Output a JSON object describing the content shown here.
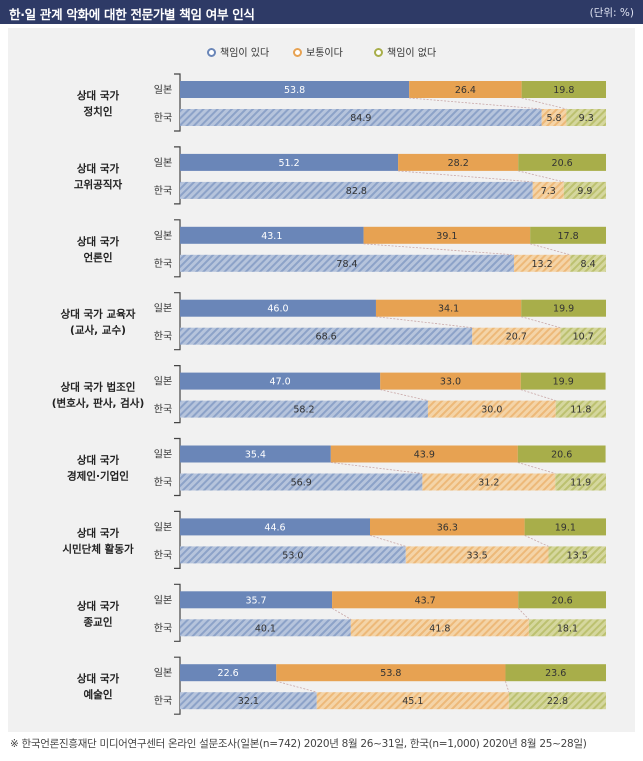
{
  "header": {
    "title": "한·일 관계 악화에 대한 전문가별 책임 여부 인식",
    "unit": "(단위: %)"
  },
  "footnote": "※ 한국언론진흥재단 미디어연구센터 온라인 설문조사(일본(n=742) 2020년 8월 26~31일, 한국(n=1,000) 2020년 8월 25~28일)",
  "colors": {
    "responsible": "#6a86b8",
    "neutral": "#e7a252",
    "not_responsible": "#a8ae4a",
    "responsible_light": "#b6c4dc",
    "neutral_light": "#f4d4a8",
    "not_responsible_light": "#d5d79e",
    "title_bar": "#2e3a66",
    "panel": "#f1f1f1"
  },
  "chart_data": {
    "type": "bar",
    "orientation": "horizontal",
    "stacked": true,
    "xlim": [
      0,
      100
    ],
    "legend": {
      "placement": "top-center",
      "entries": [
        "책임이 있다",
        "보통이다",
        "책임이 없다"
      ]
    },
    "countries": [
      "일본",
      "한국"
    ],
    "groups": [
      {
        "label": [
          "상대 국가",
          "정치인"
        ],
        "rows": [
          {
            "country": "일본",
            "values": [
              53.8,
              26.4,
              19.8
            ]
          },
          {
            "country": "한국",
            "values": [
              84.9,
              5.8,
              9.3
            ]
          }
        ]
      },
      {
        "label": [
          "상대 국가",
          "고위공직자"
        ],
        "rows": [
          {
            "country": "일본",
            "values": [
              51.2,
              28.2,
              20.6
            ]
          },
          {
            "country": "한국",
            "values": [
              82.8,
              7.3,
              9.9
            ]
          }
        ]
      },
      {
        "label": [
          "상대 국가",
          "언론인"
        ],
        "rows": [
          {
            "country": "일본",
            "values": [
              43.1,
              39.1,
              17.8
            ]
          },
          {
            "country": "한국",
            "values": [
              78.4,
              13.2,
              8.4
            ]
          }
        ]
      },
      {
        "label": [
          "상대 국가 교육자",
          "(교사, 교수)"
        ],
        "rows": [
          {
            "country": "일본",
            "values": [
              46.0,
              34.1,
              19.9
            ]
          },
          {
            "country": "한국",
            "values": [
              68.6,
              20.7,
              10.7
            ]
          }
        ]
      },
      {
        "label": [
          "상대 국가 법조인",
          "(변호사, 판사, 검사)"
        ],
        "rows": [
          {
            "country": "일본",
            "values": [
              47.0,
              33.0,
              19.9
            ]
          },
          {
            "country": "한국",
            "values": [
              58.2,
              30.0,
              11.8
            ]
          }
        ]
      },
      {
        "label": [
          "상대 국가",
          "경제인·기업인"
        ],
        "rows": [
          {
            "country": "일본",
            "values": [
              35.4,
              43.9,
              20.6
            ]
          },
          {
            "country": "한국",
            "values": [
              56.9,
              31.2,
              11.9
            ]
          }
        ]
      },
      {
        "label": [
          "상대 국가",
          "시민단체 활동가"
        ],
        "rows": [
          {
            "country": "일본",
            "values": [
              44.6,
              36.3,
              19.1
            ]
          },
          {
            "country": "한국",
            "values": [
              53.0,
              33.5,
              13.5
            ]
          }
        ]
      },
      {
        "label": [
          "상대 국가",
          "종교인"
        ],
        "rows": [
          {
            "country": "일본",
            "values": [
              35.7,
              43.7,
              20.6
            ]
          },
          {
            "country": "한국",
            "values": [
              40.1,
              41.8,
              18.1
            ]
          }
        ]
      },
      {
        "label": [
          "상대 국가",
          "예술인"
        ],
        "rows": [
          {
            "country": "일본",
            "values": [
              22.6,
              53.8,
              23.6
            ]
          },
          {
            "country": "한국",
            "values": [
              32.1,
              45.1,
              22.8
            ]
          }
        ]
      }
    ]
  }
}
